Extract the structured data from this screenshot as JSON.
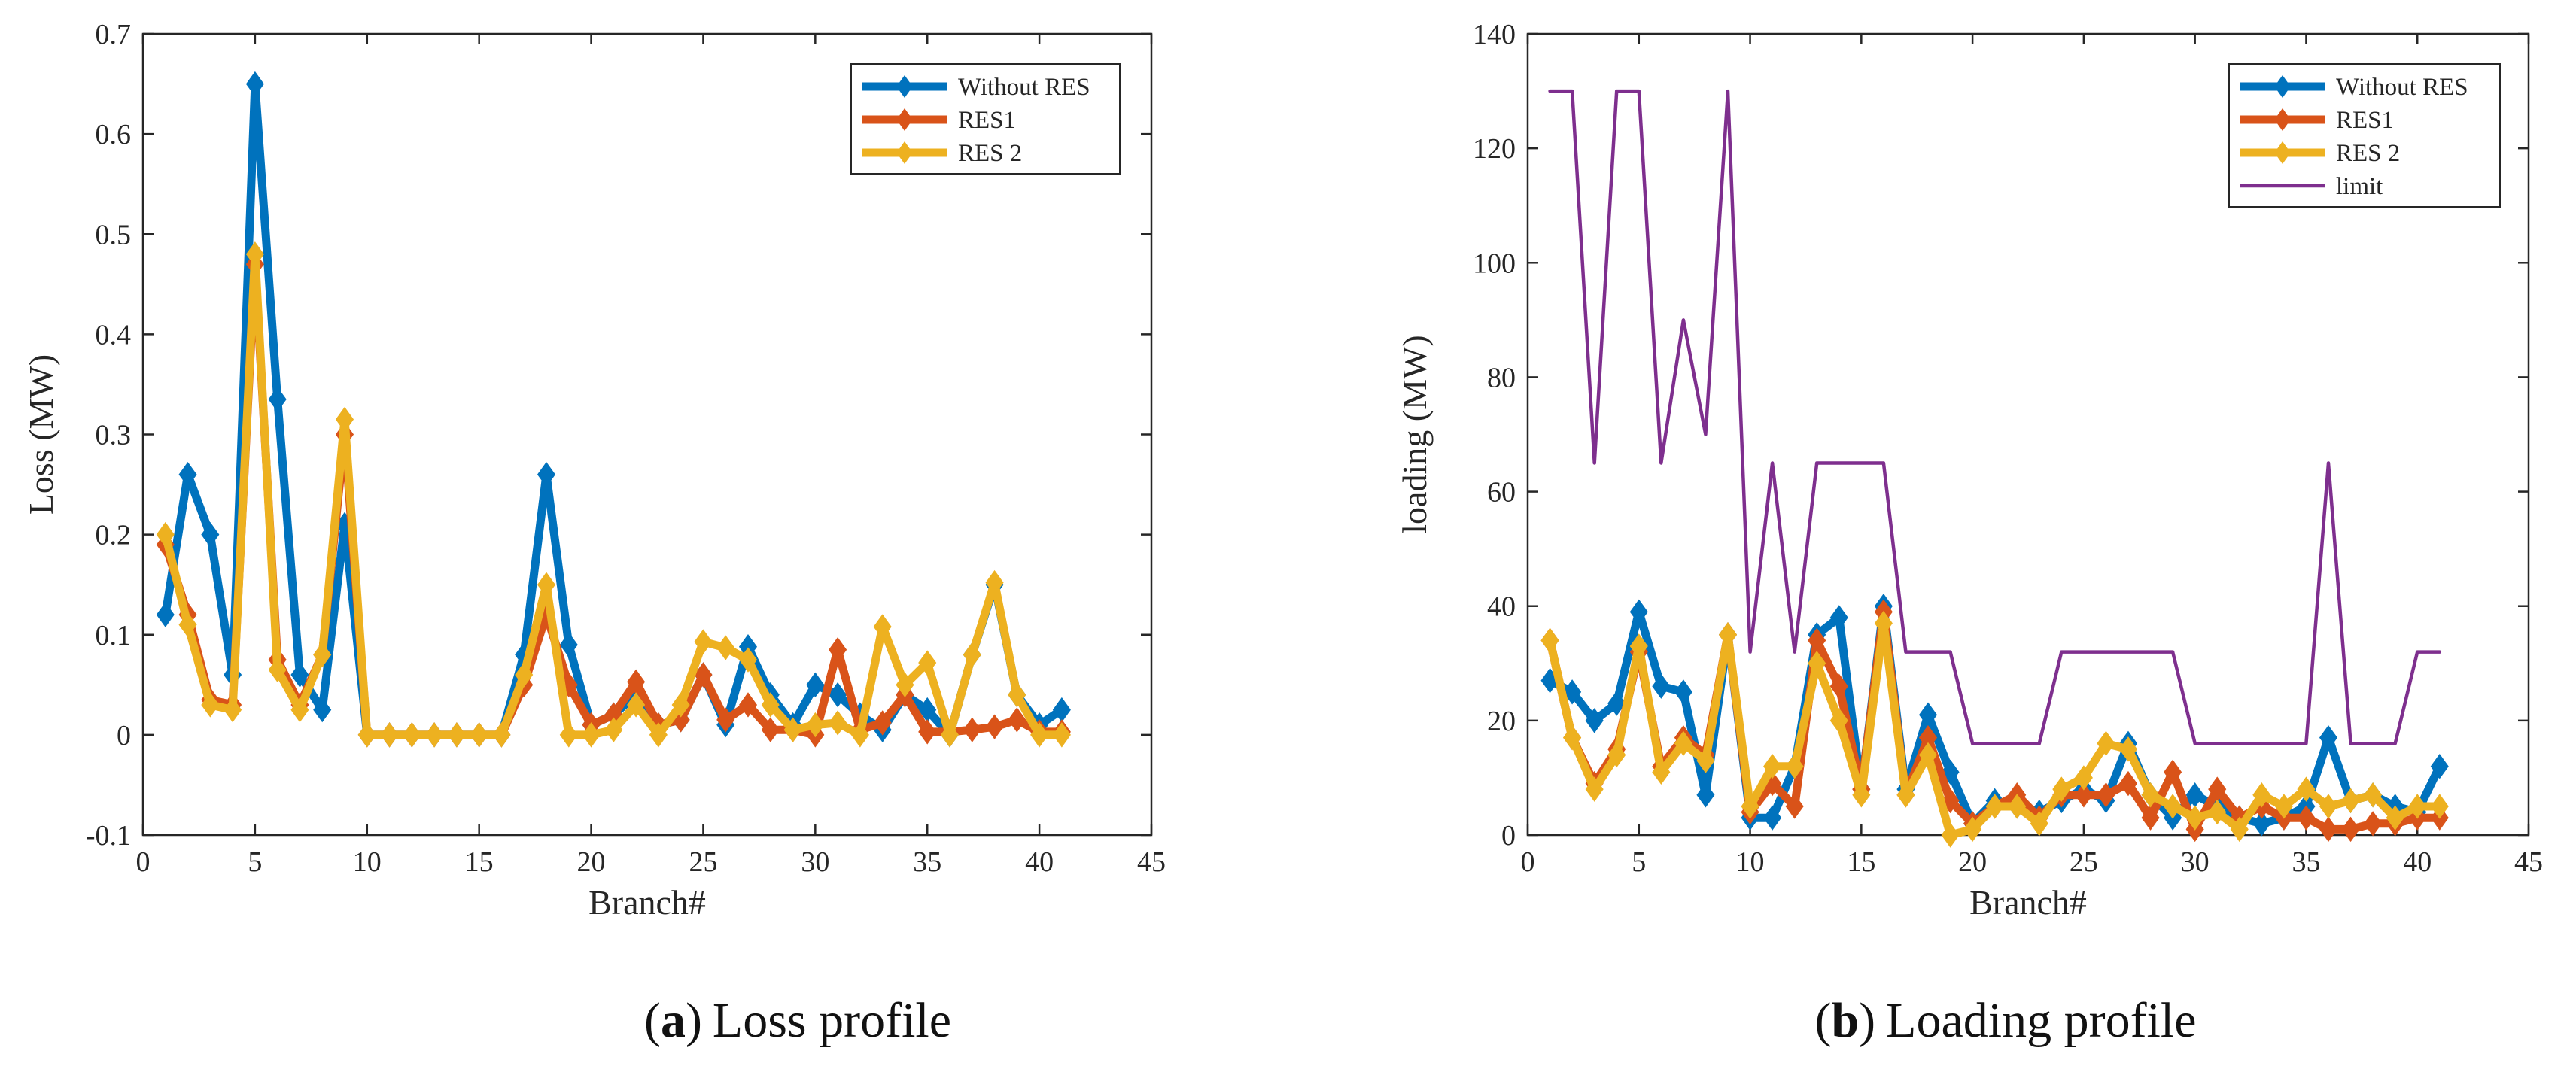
{
  "colors": {
    "without_res": "#0072BD",
    "res1": "#D95319",
    "res2": "#EDB120",
    "limit": "#7E2F8E",
    "axis": "#262626"
  },
  "captions": [
    {
      "letter": "a",
      "open": "(",
      "close": ")",
      "text": "Loss profile"
    },
    {
      "letter": "b",
      "open": "(",
      "close": ")",
      "text": "Loading profile"
    }
  ],
  "chart_data": [
    {
      "type": "line",
      "title": "",
      "xlabel": "Branch#",
      "ylabel": "Loss (MW)",
      "xlim": [
        0,
        45
      ],
      "ylim": [
        -0.1,
        0.7
      ],
      "xticks": [
        0,
        5,
        10,
        15,
        20,
        25,
        30,
        35,
        40,
        45
      ],
      "yticks": [
        -0.1,
        0,
        0.1,
        0.2,
        0.3,
        0.4,
        0.5,
        0.6,
        0.7
      ],
      "ytick_labels": [
        "-0.1",
        "0",
        "0.1",
        "0.2",
        "0.3",
        "0.4",
        "0.5",
        "0.6",
        "0.7"
      ],
      "legend_position": "top-right",
      "x": [
        1,
        2,
        3,
        4,
        5,
        6,
        7,
        8,
        9,
        10,
        11,
        12,
        13,
        14,
        15,
        16,
        17,
        18,
        19,
        20,
        21,
        22,
        23,
        24,
        25,
        26,
        27,
        28,
        29,
        30,
        31,
        32,
        33,
        34,
        35,
        36,
        37,
        38,
        39,
        40,
        41
      ],
      "series": [
        {
          "name": "Without RES",
          "key": "without_res",
          "marker": true,
          "values": [
            0.12,
            0.26,
            0.2,
            0.06,
            0.65,
            0.335,
            0.06,
            0.025,
            0.21,
            0,
            0,
            0,
            0,
            0,
            0,
            0,
            0.08,
            0.26,
            0.09,
            0.01,
            0.02,
            0.04,
            0.01,
            0.015,
            0.06,
            0.01,
            0.088,
            0.04,
            0.01,
            0.05,
            0.04,
            0.02,
            0.005,
            0.04,
            0.025,
            0,
            0.08,
            0.15,
            0.04,
            0.01,
            0.025
          ]
        },
        {
          "name": "RES1",
          "key": "res1",
          "marker": true,
          "values": [
            0.19,
            0.12,
            0.035,
            0.03,
            0.47,
            0.075,
            0.03,
            0.08,
            0.3,
            0,
            0,
            0,
            0,
            0,
            0,
            0,
            0.05,
            0.12,
            0.05,
            0.01,
            0.02,
            0.053,
            0.01,
            0.015,
            0.06,
            0.015,
            0.03,
            0.005,
            0.005,
            0,
            0.085,
            0.005,
            0.012,
            0.04,
            0.003,
            0.003,
            0.005,
            0.008,
            0.015,
            0.003,
            0.003
          ]
        },
        {
          "name": "RES 2",
          "key": "res2",
          "marker": true,
          "values": [
            0.2,
            0.11,
            0.03,
            0.025,
            0.48,
            0.065,
            0.025,
            0.08,
            0.315,
            0,
            0,
            0,
            0,
            0,
            0,
            0,
            0.06,
            0.15,
            0,
            0,
            0.005,
            0.03,
            0,
            0.03,
            0.093,
            0.087,
            0.075,
            0.03,
            0.005,
            0.01,
            0.012,
            0,
            0.108,
            0.05,
            0.072,
            0,
            0.08,
            0.152,
            0.04,
            0,
            0
          ]
        }
      ]
    },
    {
      "type": "line",
      "title": "",
      "xlabel": "Branch#",
      "ylabel": "loading (MW)",
      "xlim": [
        0,
        45
      ],
      "ylim": [
        0,
        140
      ],
      "xticks": [
        0,
        5,
        10,
        15,
        20,
        25,
        30,
        35,
        40,
        45
      ],
      "yticks": [
        0,
        20,
        40,
        60,
        80,
        100,
        120,
        140
      ],
      "ytick_labels": [
        "0",
        "20",
        "40",
        "60",
        "80",
        "100",
        "120",
        "140"
      ],
      "legend_position": "top-right",
      "x": [
        1,
        2,
        3,
        4,
        5,
        6,
        7,
        8,
        9,
        10,
        11,
        12,
        13,
        14,
        15,
        16,
        17,
        18,
        19,
        20,
        21,
        22,
        23,
        24,
        25,
        26,
        27,
        28,
        29,
        30,
        31,
        32,
        33,
        34,
        35,
        36,
        37,
        38,
        39,
        40,
        41
      ],
      "series": [
        {
          "name": "Without RES",
          "key": "without_res",
          "marker": true,
          "values": [
            27,
            25,
            20,
            23,
            39,
            26,
            25,
            7,
            35,
            3,
            3,
            12,
            35,
            38,
            8,
            40,
            8,
            21,
            11,
            2,
            6,
            5,
            4,
            6,
            8,
            6,
            16,
            7,
            3,
            7,
            5,
            3,
            2,
            3,
            5,
            17,
            6,
            7,
            5,
            4,
            12
          ]
        },
        {
          "name": "RES1",
          "key": "res1",
          "marker": true,
          "values": [
            34,
            17,
            9,
            15,
            32,
            12,
            17,
            14,
            35,
            4,
            9,
            5,
            34,
            26,
            8,
            39,
            7,
            17,
            6,
            2,
            5,
            7,
            3,
            7,
            7,
            7,
            9,
            3,
            11,
            1,
            8,
            3,
            5,
            3,
            3,
            1,
            1,
            2,
            2,
            3,
            3
          ]
        },
        {
          "name": "RES 2",
          "key": "res2",
          "marker": true,
          "values": [
            34,
            17,
            8,
            14,
            33,
            11,
            16,
            13,
            35,
            5,
            12,
            12,
            30,
            20,
            7,
            37,
            7,
            14,
            0,
            1,
            5,
            5,
            2,
            8,
            10,
            16,
            15,
            7,
            5,
            3,
            4,
            1,
            7,
            5,
            8,
            5,
            6,
            7,
            3,
            5,
            5
          ]
        },
        {
          "name": "limit",
          "key": "limit",
          "marker": false,
          "values": [
            130,
            130,
            65,
            130,
            130,
            65,
            90,
            70,
            130,
            32,
            65,
            32,
            65,
            65,
            65,
            65,
            32,
            32,
            32,
            16,
            16,
            16,
            16,
            32,
            32,
            32,
            32,
            32,
            32,
            16,
            16,
            16,
            16,
            16,
            16,
            65,
            16,
            16,
            16,
            32,
            32
          ]
        }
      ]
    }
  ]
}
